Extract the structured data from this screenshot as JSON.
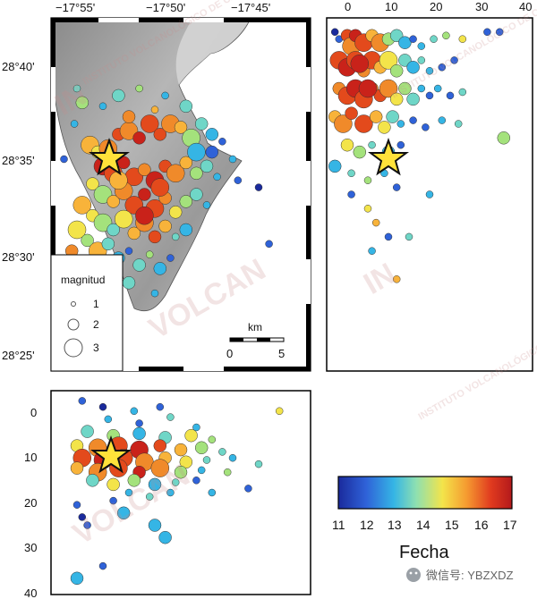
{
  "map": {
    "lon_ticks": [
      "−17°55'",
      "−17°50'",
      "−17°45'"
    ],
    "lat_ticks": [
      "28°40'",
      "28°35'",
      "28°30'",
      "28°25'"
    ],
    "scale_label": "km",
    "scale_min": "0",
    "scale_max": "5"
  },
  "legend": {
    "title": "magnitud",
    "items": [
      "1",
      "2",
      "3"
    ]
  },
  "profile_ew": {
    "x_ticks": [
      "0",
      "10",
      "20",
      "30",
      "40"
    ]
  },
  "profile_ns": {
    "y_ticks": [
      "0",
      "10",
      "20",
      "30",
      "40"
    ]
  },
  "colorbar": {
    "title": "Fecha",
    "ticks": [
      "11",
      "12",
      "13",
      "14",
      "15",
      "16",
      "17"
    ],
    "colors": [
      "#1a2a9c",
      "#2f62d8",
      "#35b5e5",
      "#8fe0b0",
      "#f3e44a",
      "#f59a30",
      "#e03a1f",
      "#b3191b"
    ]
  },
  "watermark": {
    "in": "IN",
    "volcan": "VOLCAN",
    "instituto": "INSTITUTO VOLCANOLÓGICO DE CANARIAS"
  },
  "footer": {
    "wechat": "微信号: YBZXDZ"
  },
  "chart_data": {
    "type": "scatter",
    "palette": [
      "#1a2a9c",
      "#2f62d8",
      "#35b5e5",
      "#6fd6c7",
      "#a4e27c",
      "#f3e44a",
      "#f8b33a",
      "#f08a2a",
      "#e34a1c",
      "#c9221a"
    ],
    "map_points": [
      [
        0.1,
        0.2,
        1,
        3
      ],
      [
        0.12,
        0.24,
        2,
        4
      ],
      [
        0.09,
        0.3,
        1,
        2
      ],
      [
        0.15,
        0.36,
        3,
        6
      ],
      [
        0.18,
        0.38,
        2,
        5
      ],
      [
        0.22,
        0.37,
        3,
        7
      ],
      [
        0.26,
        0.33,
        2,
        8
      ],
      [
        0.3,
        0.32,
        3,
        7
      ],
      [
        0.34,
        0.34,
        2,
        9
      ],
      [
        0.38,
        0.3,
        3,
        8
      ],
      [
        0.42,
        0.33,
        2,
        8
      ],
      [
        0.46,
        0.3,
        3,
        7
      ],
      [
        0.5,
        0.31,
        2,
        6
      ],
      [
        0.54,
        0.34,
        3,
        4
      ],
      [
        0.58,
        0.3,
        2,
        3
      ],
      [
        0.62,
        0.33,
        2,
        2
      ],
      [
        0.66,
        0.35,
        1,
        1
      ],
      [
        0.7,
        0.4,
        1,
        2
      ],
      [
        0.2,
        0.42,
        3,
        9
      ],
      [
        0.24,
        0.44,
        3,
        8
      ],
      [
        0.28,
        0.41,
        2,
        9
      ],
      [
        0.32,
        0.45,
        3,
        8
      ],
      [
        0.36,
        0.43,
        2,
        7
      ],
      [
        0.4,
        0.46,
        3,
        9
      ],
      [
        0.44,
        0.42,
        2,
        8
      ],
      [
        0.48,
        0.44,
        3,
        7
      ],
      [
        0.52,
        0.41,
        2,
        6
      ],
      [
        0.56,
        0.44,
        2,
        4
      ],
      [
        0.6,
        0.42,
        2,
        3
      ],
      [
        0.64,
        0.45,
        1,
        2
      ],
      [
        0.16,
        0.47,
        2,
        5
      ],
      [
        0.2,
        0.5,
        3,
        4
      ],
      [
        0.24,
        0.52,
        2,
        6
      ],
      [
        0.28,
        0.49,
        3,
        7
      ],
      [
        0.32,
        0.53,
        3,
        8
      ],
      [
        0.36,
        0.5,
        2,
        9
      ],
      [
        0.4,
        0.54,
        3,
        8
      ],
      [
        0.44,
        0.51,
        2,
        7
      ],
      [
        0.48,
        0.55,
        2,
        5
      ],
      [
        0.52,
        0.52,
        2,
        4
      ],
      [
        0.56,
        0.5,
        2,
        3
      ],
      [
        0.6,
        0.53,
        1,
        2
      ],
      [
        0.12,
        0.53,
        3,
        6
      ],
      [
        0.16,
        0.56,
        2,
        5
      ],
      [
        0.2,
        0.58,
        3,
        4
      ],
      [
        0.24,
        0.6,
        2,
        3
      ],
      [
        0.28,
        0.57,
        3,
        5
      ],
      [
        0.32,
        0.61,
        2,
        6
      ],
      [
        0.36,
        0.58,
        3,
        7
      ],
      [
        0.4,
        0.62,
        2,
        8
      ],
      [
        0.44,
        0.59,
        2,
        6
      ],
      [
        0.48,
        0.62,
        1,
        3
      ],
      [
        0.52,
        0.6,
        2,
        2
      ],
      [
        0.1,
        0.6,
        3,
        5
      ],
      [
        0.14,
        0.63,
        2,
        4
      ],
      [
        0.18,
        0.66,
        3,
        6
      ],
      [
        0.22,
        0.64,
        2,
        3
      ],
      [
        0.26,
        0.68,
        2,
        2
      ],
      [
        0.3,
        0.66,
        1,
        1
      ],
      [
        0.34,
        0.7,
        2,
        3
      ],
      [
        0.38,
        0.67,
        1,
        4
      ],
      [
        0.42,
        0.71,
        2,
        2
      ],
      [
        0.46,
        0.68,
        1,
        1
      ],
      [
        0.08,
        0.66,
        2,
        7
      ],
      [
        0.3,
        0.75,
        2,
        3
      ],
      [
        0.18,
        0.74,
        2,
        1
      ],
      [
        0.4,
        0.78,
        1,
        2
      ],
      [
        0.05,
        0.4,
        1,
        1
      ],
      [
        0.72,
        0.46,
        1,
        1
      ],
      [
        0.8,
        0.48,
        1,
        0
      ],
      [
        0.84,
        0.64,
        1,
        1
      ],
      [
        0.2,
        0.25,
        1,
        2
      ],
      [
        0.26,
        0.22,
        2,
        3
      ],
      [
        0.34,
        0.2,
        1,
        4
      ],
      [
        0.44,
        0.22,
        1,
        2
      ],
      [
        0.52,
        0.25,
        2,
        3
      ],
      [
        0.4,
        0.26,
        1,
        6
      ],
      [
        0.3,
        0.28,
        2,
        7
      ],
      [
        0.56,
        0.38,
        3,
        2
      ],
      [
        0.62,
        0.38,
        2,
        1
      ],
      [
        0.08,
        0.88,
        2,
        2
      ],
      [
        0.12,
        0.9,
        1,
        1
      ],
      [
        0.36,
        0.56,
        3,
        9
      ],
      [
        0.42,
        0.48,
        3,
        8
      ],
      [
        0.26,
        0.46,
        3,
        6
      ]
    ],
    "ew_points": [
      [
        0.04,
        0.04,
        1,
        0
      ],
      [
        0.06,
        0.06,
        1,
        1
      ],
      [
        0.1,
        0.05,
        2,
        8
      ],
      [
        0.12,
        0.08,
        3,
        7
      ],
      [
        0.14,
        0.05,
        2,
        9
      ],
      [
        0.18,
        0.07,
        3,
        8
      ],
      [
        0.22,
        0.05,
        2,
        6
      ],
      [
        0.26,
        0.07,
        3,
        7
      ],
      [
        0.3,
        0.06,
        2,
        4
      ],
      [
        0.34,
        0.05,
        2,
        3
      ],
      [
        0.38,
        0.07,
        2,
        2
      ],
      [
        0.42,
        0.06,
        1,
        1
      ],
      [
        0.46,
        0.08,
        1,
        2
      ],
      [
        0.52,
        0.06,
        1,
        3
      ],
      [
        0.58,
        0.05,
        1,
        4
      ],
      [
        0.66,
        0.06,
        1,
        5
      ],
      [
        0.78,
        0.04,
        1,
        1
      ],
      [
        0.84,
        0.04,
        1,
        1
      ],
      [
        0.06,
        0.12,
        3,
        8
      ],
      [
        0.1,
        0.14,
        3,
        9
      ],
      [
        0.14,
        0.12,
        3,
        8
      ],
      [
        0.18,
        0.15,
        2,
        7
      ],
      [
        0.22,
        0.12,
        3,
        8
      ],
      [
        0.26,
        0.14,
        2,
        6
      ],
      [
        0.3,
        0.12,
        3,
        5
      ],
      [
        0.34,
        0.15,
        2,
        4
      ],
      [
        0.38,
        0.12,
        2,
        3
      ],
      [
        0.42,
        0.14,
        2,
        2
      ],
      [
        0.46,
        0.12,
        1,
        3
      ],
      [
        0.5,
        0.15,
        1,
        2
      ],
      [
        0.56,
        0.14,
        1,
        1
      ],
      [
        0.62,
        0.12,
        1,
        1
      ],
      [
        0.06,
        0.2,
        2,
        7
      ],
      [
        0.1,
        0.22,
        3,
        8
      ],
      [
        0.14,
        0.2,
        3,
        9
      ],
      [
        0.18,
        0.23,
        3,
        8
      ],
      [
        0.22,
        0.2,
        2,
        7
      ],
      [
        0.26,
        0.22,
        2,
        8
      ],
      [
        0.3,
        0.2,
        3,
        7
      ],
      [
        0.34,
        0.23,
        2,
        5
      ],
      [
        0.38,
        0.2,
        2,
        4
      ],
      [
        0.42,
        0.23,
        2,
        3
      ],
      [
        0.46,
        0.2,
        1,
        2
      ],
      [
        0.5,
        0.22,
        1,
        1
      ],
      [
        0.54,
        0.2,
        1,
        2
      ],
      [
        0.6,
        0.22,
        1,
        1
      ],
      [
        0.66,
        0.21,
        1,
        3
      ],
      [
        0.04,
        0.28,
        2,
        6
      ],
      [
        0.08,
        0.3,
        3,
        7
      ],
      [
        0.12,
        0.27,
        2,
        8
      ],
      [
        0.18,
        0.3,
        3,
        8
      ],
      [
        0.24,
        0.28,
        2,
        6
      ],
      [
        0.28,
        0.31,
        2,
        5
      ],
      [
        0.32,
        0.28,
        2,
        3
      ],
      [
        0.36,
        0.3,
        1,
        2
      ],
      [
        0.42,
        0.29,
        1,
        1
      ],
      [
        0.48,
        0.31,
        1,
        1
      ],
      [
        0.56,
        0.29,
        1,
        2
      ],
      [
        0.64,
        0.3,
        1,
        3
      ],
      [
        0.86,
        0.34,
        2,
        4
      ],
      [
        0.1,
        0.36,
        2,
        5
      ],
      [
        0.16,
        0.38,
        2,
        4
      ],
      [
        0.22,
        0.36,
        1,
        3
      ],
      [
        0.3,
        0.38,
        2,
        2
      ],
      [
        0.36,
        0.36,
        1,
        1
      ],
      [
        0.04,
        0.42,
        2,
        2
      ],
      [
        0.12,
        0.44,
        1,
        3
      ],
      [
        0.2,
        0.46,
        1,
        4
      ],
      [
        0.28,
        0.44,
        1,
        2
      ],
      [
        0.34,
        0.48,
        1,
        1
      ],
      [
        0.2,
        0.54,
        1,
        5
      ],
      [
        0.24,
        0.58,
        1,
        6
      ],
      [
        0.3,
        0.62,
        1,
        1
      ],
      [
        0.22,
        0.66,
        1,
        2
      ],
      [
        0.4,
        0.62,
        1,
        3
      ],
      [
        0.12,
        0.5,
        1,
        1
      ],
      [
        0.5,
        0.5,
        1,
        2
      ],
      [
        0.34,
        0.74,
        1,
        6
      ],
      [
        0.2,
        0.2,
        3,
        9
      ],
      [
        0.16,
        0.13,
        3,
        9
      ]
    ],
    "ns_points": [
      [
        0.12,
        0.05,
        1,
        1
      ],
      [
        0.2,
        0.08,
        1,
        0
      ],
      [
        0.32,
        0.1,
        1,
        2
      ],
      [
        0.42,
        0.08,
        1,
        1
      ],
      [
        0.22,
        0.14,
        1,
        2
      ],
      [
        0.46,
        0.13,
        1,
        3
      ],
      [
        0.34,
        0.16,
        1,
        1
      ],
      [
        0.56,
        0.18,
        1,
        2
      ],
      [
        0.14,
        0.2,
        2,
        3
      ],
      [
        0.24,
        0.22,
        2,
        4
      ],
      [
        0.34,
        0.21,
        2,
        2
      ],
      [
        0.44,
        0.23,
        2,
        3
      ],
      [
        0.54,
        0.22,
        2,
        5
      ],
      [
        0.62,
        0.24,
        1,
        4
      ],
      [
        0.1,
        0.27,
        2,
        5
      ],
      [
        0.18,
        0.28,
        3,
        7
      ],
      [
        0.26,
        0.27,
        3,
        8
      ],
      [
        0.34,
        0.29,
        3,
        9
      ],
      [
        0.42,
        0.27,
        2,
        8
      ],
      [
        0.5,
        0.29,
        2,
        6
      ],
      [
        0.58,
        0.28,
        2,
        4
      ],
      [
        0.66,
        0.3,
        1,
        3
      ],
      [
        0.12,
        0.33,
        3,
        8
      ],
      [
        0.2,
        0.34,
        3,
        9
      ],
      [
        0.28,
        0.33,
        3,
        8
      ],
      [
        0.36,
        0.35,
        3,
        7
      ],
      [
        0.44,
        0.33,
        2,
        6
      ],
      [
        0.52,
        0.35,
        2,
        5
      ],
      [
        0.6,
        0.34,
        1,
        3
      ],
      [
        0.7,
        0.33,
        1,
        2
      ],
      [
        0.1,
        0.38,
        2,
        6
      ],
      [
        0.18,
        0.4,
        3,
        7
      ],
      [
        0.26,
        0.38,
        3,
        8
      ],
      [
        0.34,
        0.4,
        2,
        9
      ],
      [
        0.42,
        0.38,
        3,
        7
      ],
      [
        0.5,
        0.4,
        2,
        4
      ],
      [
        0.58,
        0.39,
        1,
        2
      ],
      [
        0.16,
        0.44,
        2,
        3
      ],
      [
        0.24,
        0.46,
        2,
        5
      ],
      [
        0.32,
        0.44,
        2,
        4
      ],
      [
        0.4,
        0.46,
        2,
        2
      ],
      [
        0.48,
        0.45,
        1,
        3
      ],
      [
        0.56,
        0.44,
        1,
        1
      ],
      [
        0.76,
        0.48,
        1,
        1
      ],
      [
        0.3,
        0.5,
        1,
        2
      ],
      [
        0.38,
        0.52,
        1,
        3
      ],
      [
        0.46,
        0.5,
        1,
        2
      ],
      [
        0.24,
        0.54,
        1,
        1
      ],
      [
        0.28,
        0.6,
        2,
        2
      ],
      [
        0.1,
        0.56,
        1,
        1
      ],
      [
        0.12,
        0.62,
        1,
        0
      ],
      [
        0.14,
        0.66,
        1,
        1
      ],
      [
        0.4,
        0.66,
        2,
        2
      ],
      [
        0.44,
        0.72,
        2,
        2
      ],
      [
        0.1,
        0.92,
        2,
        2
      ],
      [
        0.2,
        0.86,
        1,
        1
      ],
      [
        0.88,
        0.1,
        1,
        5
      ],
      [
        0.8,
        0.36,
        1,
        3
      ],
      [
        0.68,
        0.4,
        1,
        4
      ],
      [
        0.62,
        0.5,
        1,
        2
      ]
    ]
  }
}
